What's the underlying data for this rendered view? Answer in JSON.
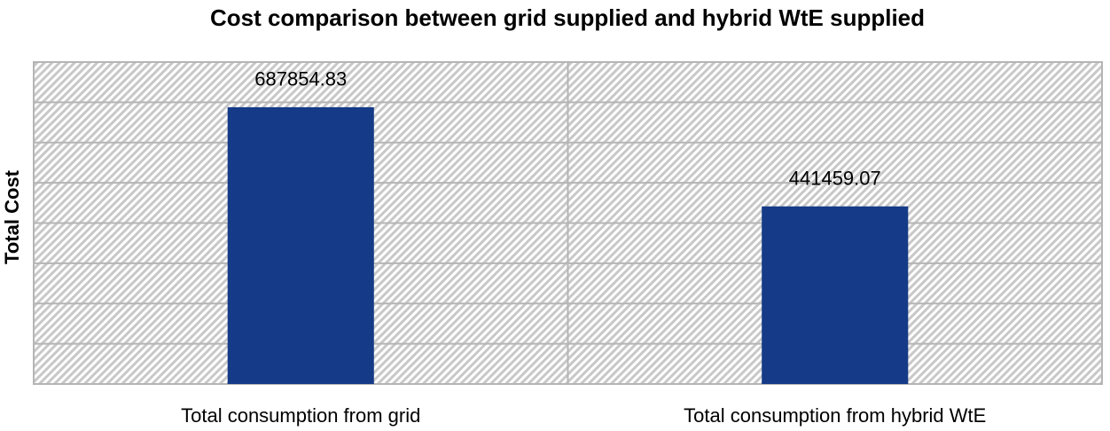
{
  "chart_data": {
    "type": "bar",
    "title": "Cost comparison between grid supplied and hybrid WtE supplied",
    "y_label": "Total Cost",
    "categories": [
      "Total consumption from grid",
      "Total consumption from hybrid WtE"
    ],
    "values": [
      687854.83,
      441459.07
    ],
    "color": "#153a87",
    "ylim": [
      0,
      800000
    ],
    "yticks": [
      0,
      100000,
      200000,
      300000,
      400000,
      500000,
      600000,
      700000,
      800000
    ],
    "grid": true
  }
}
